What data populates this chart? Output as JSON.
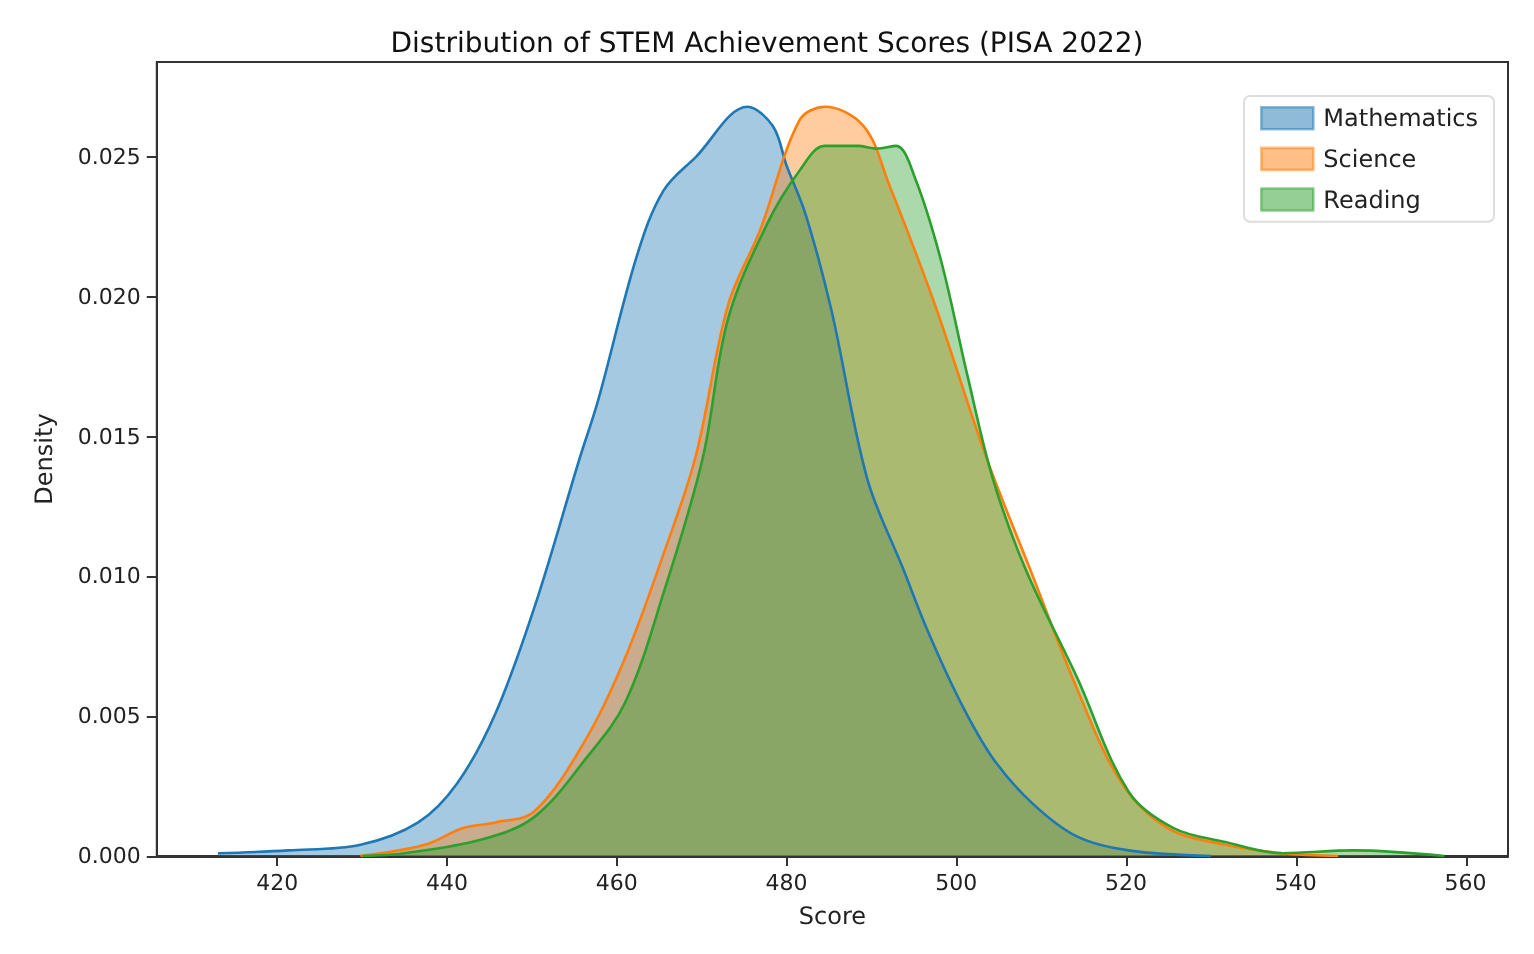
{
  "chart_data": {
    "type": "area",
    "title": "Distribution of STEM Achievement Scores (PISA 2022)",
    "xlabel": "Score",
    "ylabel": "Density",
    "series": [
      {
        "name": "Mathematics",
        "color": "#1f77b4",
        "x": [
          413,
          421.3,
          429.8,
          436.6,
          441.2,
          445.7,
          450.3,
          455.6,
          457.8,
          462.4,
          465.5,
          469.3,
          475.4,
          478.4,
          480,
          482.3,
          485.3,
          489.5,
          493.7,
          496.7,
          500.5,
          504.3,
          508.9,
          514.2,
          520.3,
          530
        ],
        "values": [
          0.0001,
          0.0002,
          0.0004,
          0.0012,
          0.0026,
          0.0051,
          0.0089,
          0.0142,
          0.0163,
          0.0215,
          0.0238,
          0.025,
          0.0268,
          0.0261,
          0.0247,
          0.0229,
          0.0195,
          0.0135,
          0.0103,
          0.008,
          0.0055,
          0.0035,
          0.0019,
          0.0007,
          0.0002,
          0
        ]
      },
      {
        "name": "Science",
        "color": "#ff7f0e",
        "x": [
          429.8,
          437.4,
          441.9,
          445.7,
          450.3,
          456.4,
          461,
          465.5,
          469.3,
          473.1,
          476.9,
          481.5,
          484.5,
          489.1,
          492.1,
          497.5,
          503.6,
          508.9,
          514.2,
          519.5,
          524.9,
          531.7,
          538.4,
          545
        ],
        "values": [
          0,
          0.0004,
          0.001,
          0.0012,
          0.0016,
          0.0042,
          0.0071,
          0.0108,
          0.0143,
          0.0197,
          0.0224,
          0.0263,
          0.0268,
          0.0261,
          0.024,
          0.0197,
          0.0142,
          0.0101,
          0.006,
          0.0026,
          0.001,
          0.0004,
          0.0001,
          0
        ]
      },
      {
        "name": "Reading",
        "color": "#2ca02c",
        "x": [
          430,
          435,
          444.2,
          450.3,
          456.4,
          461,
          465.5,
          470.1,
          473.1,
          477.7,
          481.5,
          484.5,
          488.4,
          490.6,
          492.9,
          495.2,
          498.2,
          501.3,
          504.3,
          508.1,
          514.2,
          520.3,
          525.6,
          531.7,
          538.4,
          546.8,
          557.5
        ],
        "values": [
          0,
          0.0001,
          0.0006,
          0.0014,
          0.0035,
          0.0055,
          0.0094,
          0.0142,
          0.0192,
          0.0226,
          0.0245,
          0.0254,
          0.0254,
          0.0253,
          0.0254,
          0.0242,
          0.0213,
          0.0172,
          0.0135,
          0.0103,
          0.0064,
          0.0023,
          0.001,
          0.0005,
          0.0001,
          0.0002,
          0
        ]
      }
    ],
    "xlim": [
      405.8,
      565
    ],
    "xticks": [
      420,
      440,
      460,
      480,
      500,
      520,
      540,
      560
    ],
    "ylim": [
      0,
      0.0284
    ],
    "yticks": [
      {
        "value": 0,
        "label": "0.000"
      },
      {
        "value": 0.005,
        "label": "0.005"
      },
      {
        "value": 0.01,
        "label": "0.010"
      },
      {
        "value": 0.015,
        "label": "0.015"
      },
      {
        "value": 0.02,
        "label": "0.020"
      },
      {
        "value": 0.025,
        "label": "0.025"
      }
    ],
    "grid": false,
    "legend": "top right"
  }
}
